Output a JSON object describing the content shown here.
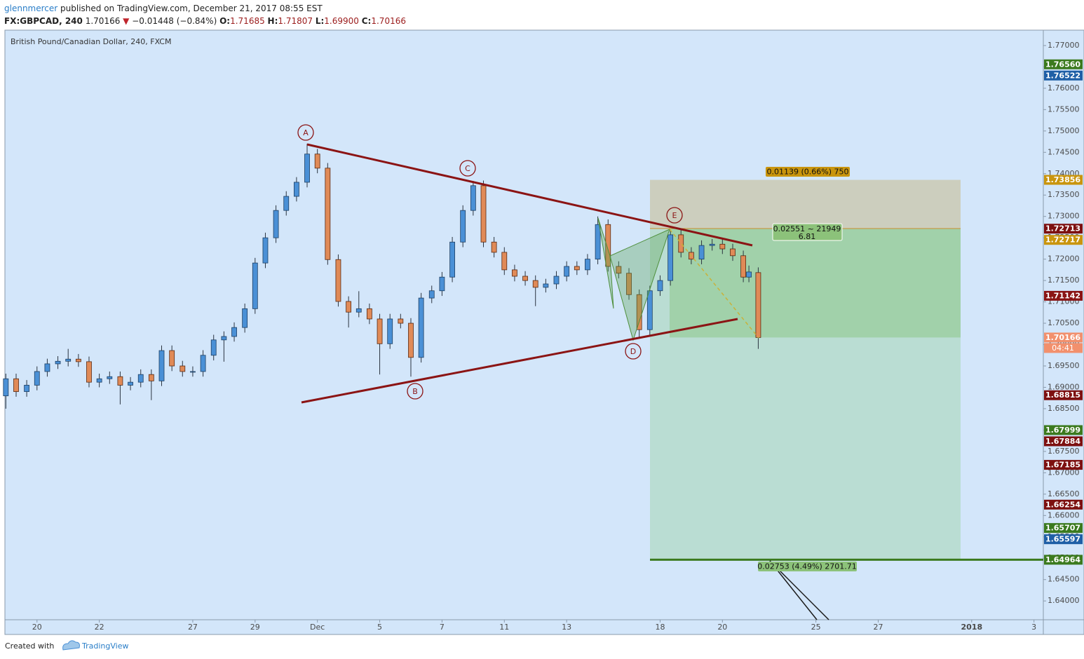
{
  "header": {
    "author": "glennmercer",
    "published": "published on TradingView.com, December 21, 2017 08:55 EST",
    "symbol": "FX:GBPCAD, 240",
    "last": "1.70166",
    "arrow": "▼",
    "change": "−0.01448 (−0.84%)",
    "ohlc": [
      {
        "key": "O:",
        "value": "1.71685"
      },
      {
        "key": "H:",
        "value": "1.71807"
      },
      {
        "key": "L:",
        "value": "1.69900"
      },
      {
        "key": "C:",
        "value": "1.70166"
      }
    ]
  },
  "chart_data": {
    "type": "candlestick",
    "title": "British Pound/Canadian Dollar, 240, FXCM",
    "x": [
      -1,
      -0.67,
      -0.33,
      0,
      0.33,
      0.67,
      1,
      1.33,
      1.67,
      2,
      2.33,
      2.67,
      3,
      3.33,
      3.67,
      4,
      4.33,
      4.67,
      5,
      5.33,
      5.67,
      6,
      6.33,
      6.67,
      7,
      7.33,
      7.67,
      8,
      8.33,
      8.67,
      9,
      9.33,
      9.67,
      10,
      10.33,
      10.67,
      11,
      11.33,
      11.67,
      12,
      12.33,
      12.67,
      13,
      13.33,
      13.67,
      14,
      14.33,
      14.67,
      15,
      15.33,
      15.67,
      16,
      16.33,
      16.67,
      17,
      17.33,
      17.67,
      18,
      18.33,
      18.67,
      19,
      19.33,
      19.67,
      20,
      20.33,
      20.67,
      21,
      21.33,
      21.67,
      22,
      22.33,
      22.67,
      22.85,
      23.15
    ],
    "open": [
      1.688,
      1.692,
      1.689,
      1.6905,
      1.6937,
      1.6955,
      1.6961,
      1.6966,
      1.696,
      1.6912,
      1.692,
      1.6925,
      1.6905,
      1.6912,
      1.693,
      1.6915,
      1.6986,
      1.695,
      1.6937,
      1.6937,
      1.6975,
      1.7011,
      1.7019,
      1.704,
      1.7084,
      1.7191,
      1.725,
      1.7314,
      1.7347,
      1.738,
      1.7446,
      1.7413,
      1.7199,
      1.7101,
      1.7076,
      1.7084,
      1.706,
      1.7002,
      1.706,
      1.705,
      1.697,
      1.7109,
      1.7126,
      1.7158,
      1.724,
      1.7314,
      1.7372,
      1.724,
      1.7216,
      1.7175,
      1.716,
      1.715,
      1.7134,
      1.7142,
      1.716,
      1.7183,
      1.7175,
      1.72,
      1.7281,
      1.7183,
      1.7167,
      1.7117,
      1.7035,
      1.7126,
      1.715,
      1.7257,
      1.7216,
      1.72,
      1.7232,
      1.7235,
      1.7224,
      1.7208,
      1.7158,
      1.71685
    ],
    "high": [
      1.6932,
      1.6932,
      1.6917,
      1.6949,
      1.6967,
      1.6973,
      1.699,
      1.6978,
      1.6972,
      1.6932,
      1.6937,
      1.6937,
      1.6924,
      1.6942,
      1.6942,
      1.6998,
      1.6998,
      1.6962,
      1.6949,
      1.6987,
      1.7023,
      1.7031,
      1.7052,
      1.7096,
      1.7203,
      1.7262,
      1.7326,
      1.7359,
      1.7392,
      1.747,
      1.7458,
      1.7425,
      1.7211,
      1.7113,
      1.7125,
      1.7096,
      1.7072,
      1.7072,
      1.7072,
      1.7062,
      1.7121,
      1.7138,
      1.717,
      1.7252,
      1.7326,
      1.7383,
      1.7384,
      1.7252,
      1.7228,
      1.7187,
      1.7172,
      1.7162,
      1.7154,
      1.7172,
      1.7195,
      1.7195,
      1.7212,
      1.73,
      1.7293,
      1.7195,
      1.7179,
      1.7129,
      1.7138,
      1.7162,
      1.7269,
      1.7269,
      1.7228,
      1.7244,
      1.7247,
      1.7247,
      1.7236,
      1.722,
      1.7185,
      1.71807
    ],
    "low": [
      1.685,
      1.6878,
      1.6878,
      1.6893,
      1.6925,
      1.6943,
      1.6949,
      1.6948,
      1.69,
      1.69,
      1.6908,
      1.686,
      1.6893,
      1.69,
      1.687,
      1.6903,
      1.6938,
      1.6925,
      1.6925,
      1.6925,
      1.6963,
      1.696,
      1.7007,
      1.7028,
      1.7072,
      1.7179,
      1.7238,
      1.7302,
      1.7335,
      1.7368,
      1.7401,
      1.7187,
      1.7089,
      1.704,
      1.7064,
      1.7048,
      1.693,
      1.699,
      1.7038,
      1.6925,
      1.6958,
      1.7097,
      1.7114,
      1.7146,
      1.7228,
      1.7302,
      1.7228,
      1.7204,
      1.7163,
      1.7148,
      1.7138,
      1.709,
      1.7122,
      1.713,
      1.7148,
      1.7163,
      1.7163,
      1.7188,
      1.7171,
      1.7155,
      1.7105,
      1.7015,
      1.7023,
      1.7114,
      1.7138,
      1.7204,
      1.7188,
      1.7188,
      1.722,
      1.7212,
      1.7196,
      1.7146,
      1.7146,
      1.699
    ],
    "close": [
      1.692,
      1.689,
      1.6905,
      1.6937,
      1.6955,
      1.6961,
      1.6966,
      1.696,
      1.6912,
      1.692,
      1.6925,
      1.6905,
      1.6912,
      1.693,
      1.6915,
      1.6986,
      1.695,
      1.6937,
      1.6937,
      1.6975,
      1.7011,
      1.7019,
      1.704,
      1.7084,
      1.7191,
      1.725,
      1.7314,
      1.7347,
      1.738,
      1.7446,
      1.7413,
      1.7199,
      1.7101,
      1.7076,
      1.7084,
      1.706,
      1.7002,
      1.706,
      1.705,
      1.697,
      1.7109,
      1.7126,
      1.7158,
      1.724,
      1.7314,
      1.7372,
      1.724,
      1.7216,
      1.7175,
      1.716,
      1.715,
      1.7134,
      1.7142,
      1.716,
      1.7183,
      1.7175,
      1.72,
      1.7281,
      1.7183,
      1.7167,
      1.7117,
      1.7035,
      1.7126,
      1.715,
      1.7257,
      1.7216,
      1.72,
      1.7232,
      1.7235,
      1.7224,
      1.7208,
      1.7158,
      1.717,
      1.70166
    ],
    "up_color": "#4a90d6",
    "down_color": "#e08a57",
    "xlim": [
      -1.03,
      32.3
    ],
    "ylim": [
      1.6356,
      1.7736
    ],
    "xticks": [
      {
        "value": 0,
        "label": "20"
      },
      {
        "value": 2,
        "label": "22"
      },
      {
        "value": 5,
        "label": "27"
      },
      {
        "value": 7,
        "label": "29"
      },
      {
        "value": 9,
        "label": "Dec"
      },
      {
        "value": 11,
        "label": "5"
      },
      {
        "value": 13,
        "label": "7"
      },
      {
        "value": 15,
        "label": "11"
      },
      {
        "value": 17,
        "label": "13"
      },
      {
        "value": 20,
        "label": "18"
      },
      {
        "value": 22,
        "label": "20"
      },
      {
        "value": 25,
        "label": "25"
      },
      {
        "value": 27,
        "label": "27"
      },
      {
        "value": 30,
        "label": "2018"
      },
      {
        "value": 32,
        "label": "3"
      }
    ],
    "yticks": [
      {
        "value": 1.64,
        "label": "1.64000"
      },
      {
        "value": 1.645,
        "label": "1.64500"
      },
      {
        "value": 1.65,
        "label": "1.65000"
      },
      {
        "value": 1.655,
        "label": "1.65500"
      },
      {
        "value": 1.66,
        "label": "1.66000"
      },
      {
        "value": 1.665,
        "label": "1.66500"
      },
      {
        "value": 1.67,
        "label": "1.67000"
      },
      {
        "value": 1.675,
        "label": "1.67500"
      },
      {
        "value": 1.68,
        "label": "1.68000"
      },
      {
        "value": 1.685,
        "label": "1.68500"
      },
      {
        "value": 1.69,
        "label": "1.69000"
      },
      {
        "value": 1.695,
        "label": "1.69500"
      },
      {
        "value": 1.7,
        "label": "1.70000"
      },
      {
        "value": 1.705,
        "label": "1.70500"
      },
      {
        "value": 1.71,
        "label": "1.71000"
      },
      {
        "value": 1.715,
        "label": "1.71500"
      },
      {
        "value": 1.72,
        "label": "1.72000"
      },
      {
        "value": 1.725,
        "label": "1.72500"
      },
      {
        "value": 1.73,
        "label": "1.73000"
      },
      {
        "value": 1.735,
        "label": "1.73500"
      },
      {
        "value": 1.74,
        "label": "1.74000"
      },
      {
        "value": 1.745,
        "label": "1.74500"
      },
      {
        "value": 1.75,
        "label": "1.75000"
      },
      {
        "value": 1.755,
        "label": "1.75500"
      },
      {
        "value": 1.76,
        "label": "1.76000"
      },
      {
        "value": 1.765,
        "label": "1.76500"
      },
      {
        "value": 1.77,
        "label": "1.77000"
      }
    ],
    "grid": false,
    "price_labels": [
      {
        "value": 1.7656,
        "label": "1.76560",
        "color": "#3b7a1e"
      },
      {
        "value": 1.76522,
        "label": "1.76522",
        "color": "#1f5fa6"
      },
      {
        "value": 1.73856,
        "label": "1.73856",
        "color": "#c9950e"
      },
      {
        "value": 1.72713,
        "label": "1.72713",
        "color": "#7d1010"
      },
      {
        "value": 1.72717,
        "label": "1.72717",
        "color": "#c9950e"
      },
      {
        "value": 1.71142,
        "label": "1.71142",
        "color": "#8a1515"
      },
      {
        "value": 1.70166,
        "label": "1.70166",
        "color": "#f2906d"
      },
      {
        "value": 1.68815,
        "label": "1.68815",
        "color": "#7d1010"
      },
      {
        "value": 1.67999,
        "label": "1.67999",
        "color": "#3b7a1e"
      },
      {
        "value": 1.67884,
        "label": "1.67884",
        "color": "#7d1010"
      },
      {
        "value": 1.67185,
        "label": "1.67185",
        "color": "#7d1010"
      },
      {
        "value": 1.66254,
        "label": "1.66254",
        "color": "#7d1010"
      },
      {
        "value": 1.65707,
        "label": "1.65707",
        "color": "#3b7a1e"
      },
      {
        "value": 1.65597,
        "label": "1.65597",
        "color": "#1f5fa6"
      },
      {
        "value": 1.64964,
        "label": "1.64964",
        "color": "#3b7a1e"
      }
    ],
    "countdown": "04:41",
    "wave_labels": [
      "A",
      "B",
      "C",
      "D",
      "E"
    ],
    "risk_reward": {
      "target": "0.01139 (0.66%) 750",
      "position": "0.02551 ~ 21949",
      "ratio": "6.81",
      "stop": "0.02753 (4.49%) 2701.71"
    }
  },
  "footer": {
    "created": "Created with",
    "brand": "TradingView"
  }
}
